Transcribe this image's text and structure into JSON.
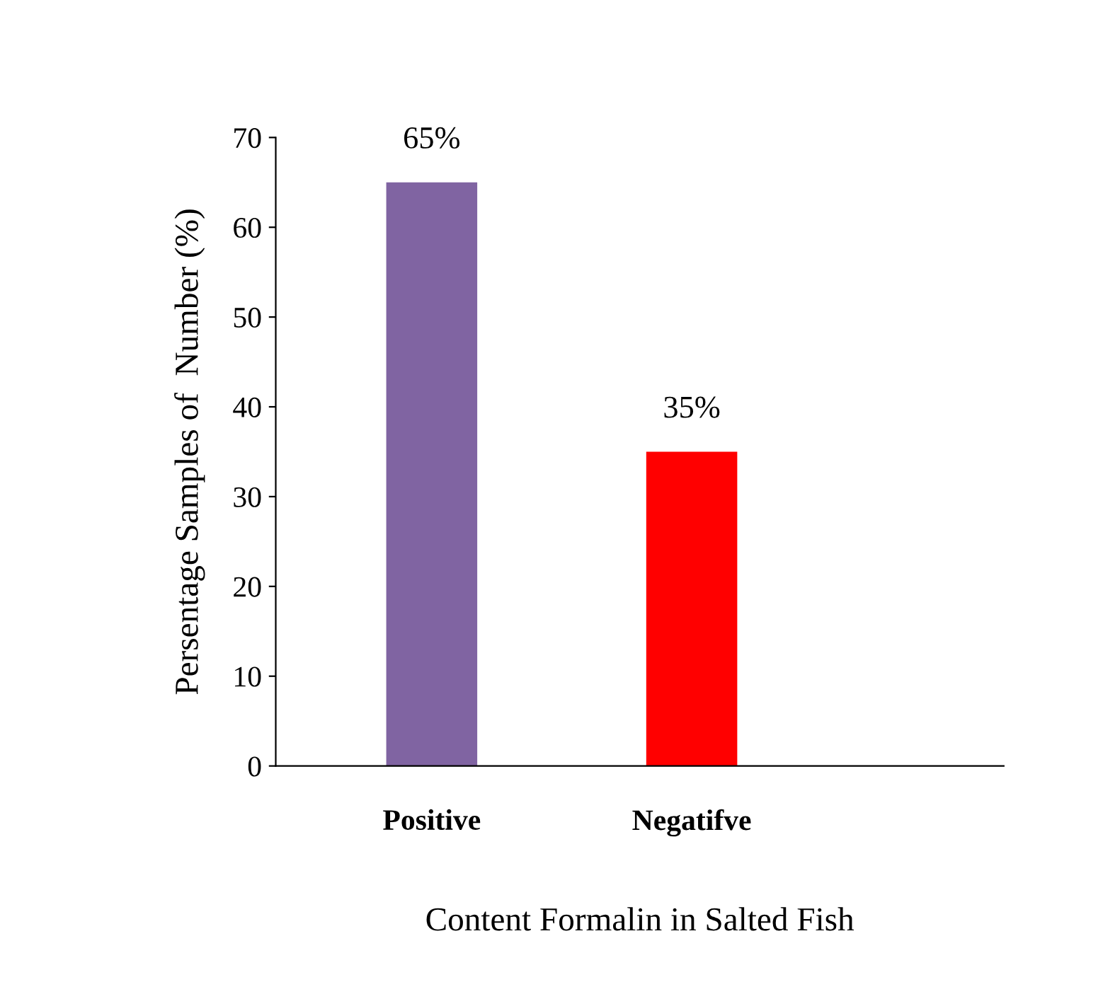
{
  "chart_data": {
    "type": "bar",
    "xlabel": "Content Formalin in Salted Fish",
    "ylabel": "Persentage Samples of  Number (%)",
    "categories": [
      "Positive",
      "Negatifve"
    ],
    "values": [
      65,
      35
    ],
    "colors": [
      "#8064a2",
      "#ff0000"
    ],
    "value_labels": [
      "65%",
      "35%"
    ],
    "ylim": [
      0,
      70
    ],
    "yticks": [
      0,
      10,
      20,
      30,
      40,
      50,
      60,
      70
    ],
    "grid": false,
    "legend": false
  }
}
